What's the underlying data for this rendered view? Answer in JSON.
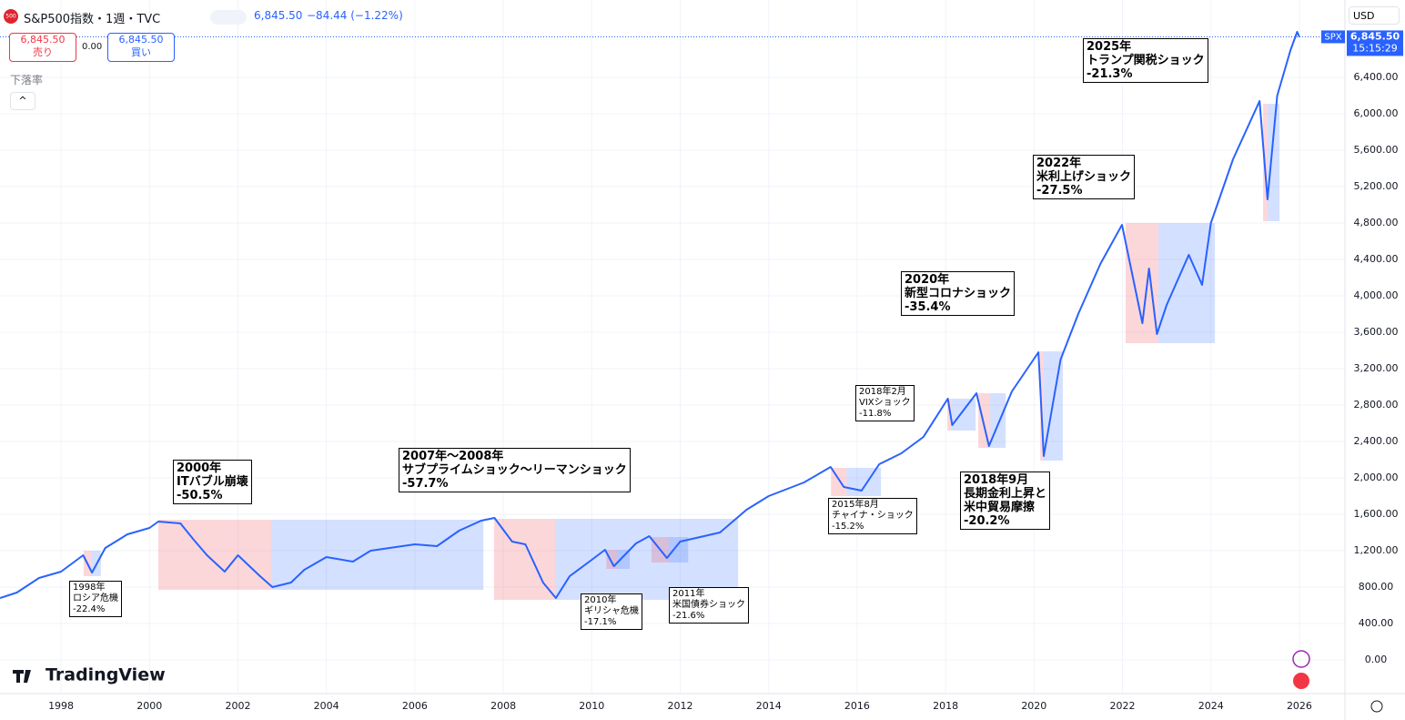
{
  "header": {
    "symbol_icon": "500",
    "title": "S&P500指数・1週・TVC",
    "price": "6,845.50",
    "change": "−84.44 (−1.22%)",
    "sell_price": "6,845.50",
    "sell": "売り",
    "spread": "0.00",
    "buy_price": "6,845.50",
    "buy": "買い",
    "indicator": "下落率",
    "currency": "USD",
    "logo": "TradingView"
  },
  "chart_data": {
    "type": "line",
    "x": [
      1996.62,
      1997.0,
      1997.5,
      1998.0,
      1998.5,
      1998.7,
      1999.0,
      1999.5,
      2000.0,
      2000.2,
      2000.7,
      2001.0,
      2001.3,
      2001.7,
      2002.0,
      2002.5,
      2002.78,
      2003.2,
      2003.5,
      2004.0,
      2004.6,
      2005.0,
      2006.0,
      2006.5,
      2007.0,
      2007.5,
      2007.8,
      2008.2,
      2008.5,
      2008.9,
      2009.19,
      2009.5,
      2010.0,
      2010.3,
      2010.5,
      2011.0,
      2011.3,
      2011.7,
      2012.0,
      2012.9,
      2013.5,
      2014.0,
      2014.8,
      2015.4,
      2015.7,
      2016.1,
      2016.5,
      2017.0,
      2017.5,
      2018.05,
      2018.15,
      2018.7,
      2018.98,
      2019.5,
      2020.1,
      2020.22,
      2020.6,
      2021.0,
      2021.5,
      2021.99,
      2022.45,
      2022.6,
      2022.78,
      2023.0,
      2023.5,
      2023.8,
      2024.0,
      2024.5,
      2025.1,
      2025.28,
      2025.5,
      2025.8,
      2025.95,
      2026.0
    ],
    "series": [
      {
        "name": "SPX",
        "color": "#2962ff",
        "values": [
          680,
          740,
          900,
          970,
          1150,
          960,
          1230,
          1380,
          1450,
          1520,
          1500,
          1320,
          1150,
          970,
          1150,
          920,
          800,
          850,
          990,
          1130,
          1080,
          1200,
          1270,
          1250,
          1420,
          1530,
          1560,
          1300,
          1270,
          850,
          680,
          920,
          1100,
          1210,
          1030,
          1280,
          1360,
          1120,
          1300,
          1400,
          1650,
          1800,
          1950,
          2120,
          1900,
          1860,
          2150,
          2270,
          2450,
          2870,
          2580,
          2930,
          2350,
          2950,
          3380,
          2240,
          3300,
          3800,
          4350,
          4780,
          3700,
          4300,
          3580,
          3900,
          4450,
          4120,
          4800,
          5500,
          6140,
          5060,
          6200,
          6700,
          6900,
          6845.5
        ]
      }
    ],
    "xlim": [
      1996.62,
      2027.03
    ],
    "ylim": [
      -370,
      7250
    ],
    "xticks": [
      1998,
      2000,
      2002,
      2004,
      2006,
      2008,
      2010,
      2012,
      2014,
      2016,
      2018,
      2020,
      2022,
      2024,
      2026
    ],
    "yticks": [
      {
        "value": 0,
        "label": "0.00"
      },
      {
        "value": 400,
        "label": "400.00"
      },
      {
        "value": 800,
        "label": "800.00"
      },
      {
        "value": 1200,
        "label": "1,200.00"
      },
      {
        "value": 1600,
        "label": "1,600.00"
      },
      {
        "value": 2000,
        "label": "2,000.00"
      },
      {
        "value": 2400,
        "label": "2,400.00"
      },
      {
        "value": 2800,
        "label": "2,800.00"
      },
      {
        "value": 3200,
        "label": "3,200.00"
      },
      {
        "value": 3600,
        "label": "3,600.00"
      },
      {
        "value": 4000,
        "label": "4,000.00"
      },
      {
        "value": 4400,
        "label": "4,400.00"
      },
      {
        "value": 4800,
        "label": "4,800.00"
      },
      {
        "value": 5200,
        "label": "5,200.00"
      },
      {
        "value": 5600,
        "label": "5,600.00"
      },
      {
        "value": 6000,
        "label": "6,000.00"
      },
      {
        "value": 6400,
        "label": "6,400.00"
      }
    ],
    "grid": true,
    "last_price": {
      "value": 6845.5,
      "label": "6,845.50"
    },
    "last_symbol": "SPX",
    "countdown": "15:15:29",
    "decline_color": "rgba(242,54,69,0.2)",
    "recovery_color": "rgba(41,98,255,0.2)",
    "drawdowns": [
      {
        "label": [
          "1998年",
          "ロシア危機",
          "-22.4%"
        ],
        "start": 1998.51,
        "trough": 1998.68,
        "end": 1998.9,
        "high": 1200,
        "low": 920
      },
      {
        "label": [
          "2000年",
          "ITバブル崩壊",
          "-50.5%"
        ],
        "start": 2000.2,
        "trough": 2002.75,
        "end": 2007.55,
        "high": 1540,
        "low": 770
      },
      {
        "label": [
          "2007年〜2008年",
          "サブプライムショック〜リーマンショック",
          "-57.7%"
        ],
        "start": 2007.79,
        "trough": 2009.17,
        "end": 2013.31,
        "high": 1550,
        "low": 660
      },
      {
        "label": [
          "2010年",
          "ギリシャ危機",
          "-17.1%"
        ],
        "start": 2010.33,
        "trough": 2010.57,
        "end": 2010.86,
        "high": 1210,
        "low": 1000
      },
      {
        "label": [
          "2011年",
          "米国債券ショック",
          "-21.6%"
        ],
        "start": 2011.35,
        "trough": 2011.74,
        "end": 2012.18,
        "high": 1350,
        "low": 1070
      },
      {
        "label": [
          "2015年8月",
          "チャイナ・ショック",
          "-15.2%"
        ],
        "start": 2015.41,
        "trough": 2015.76,
        "end": 2016.54,
        "high": 2110,
        "low": 1800
      },
      {
        "label": [
          "2018年2月",
          "VIXショック",
          "-11.8%"
        ],
        "start": 2018.04,
        "trough": 2018.14,
        "end": 2018.68,
        "high": 2870,
        "low": 2520
      },
      {
        "label": [
          "2018年9月",
          "長期金利上昇と",
          "米中貿易摩擦",
          "-20.2%"
        ],
        "start": 2018.74,
        "trough": 2019.01,
        "end": 2019.36,
        "high": 2930,
        "low": 2330
      },
      {
        "label": [
          "2020年",
          "新型コロナショック",
          "-35.4%"
        ],
        "start": 2020.14,
        "trough": 2020.22,
        "end": 2020.65,
        "high": 3390,
        "low": 2190
      },
      {
        "label": [
          "2022年",
          "米利上げショック",
          "-27.5%"
        ],
        "start": 2022.07,
        "trough": 2022.81,
        "end": 2024.09,
        "high": 4800,
        "low": 3480
      },
      {
        "label": [
          "2025年",
          "トランプ関税ショック",
          "-21.3%"
        ],
        "start": 2025.18,
        "trough": 2025.28,
        "end": 2025.55,
        "high": 6110,
        "low": 4820
      }
    ]
  }
}
